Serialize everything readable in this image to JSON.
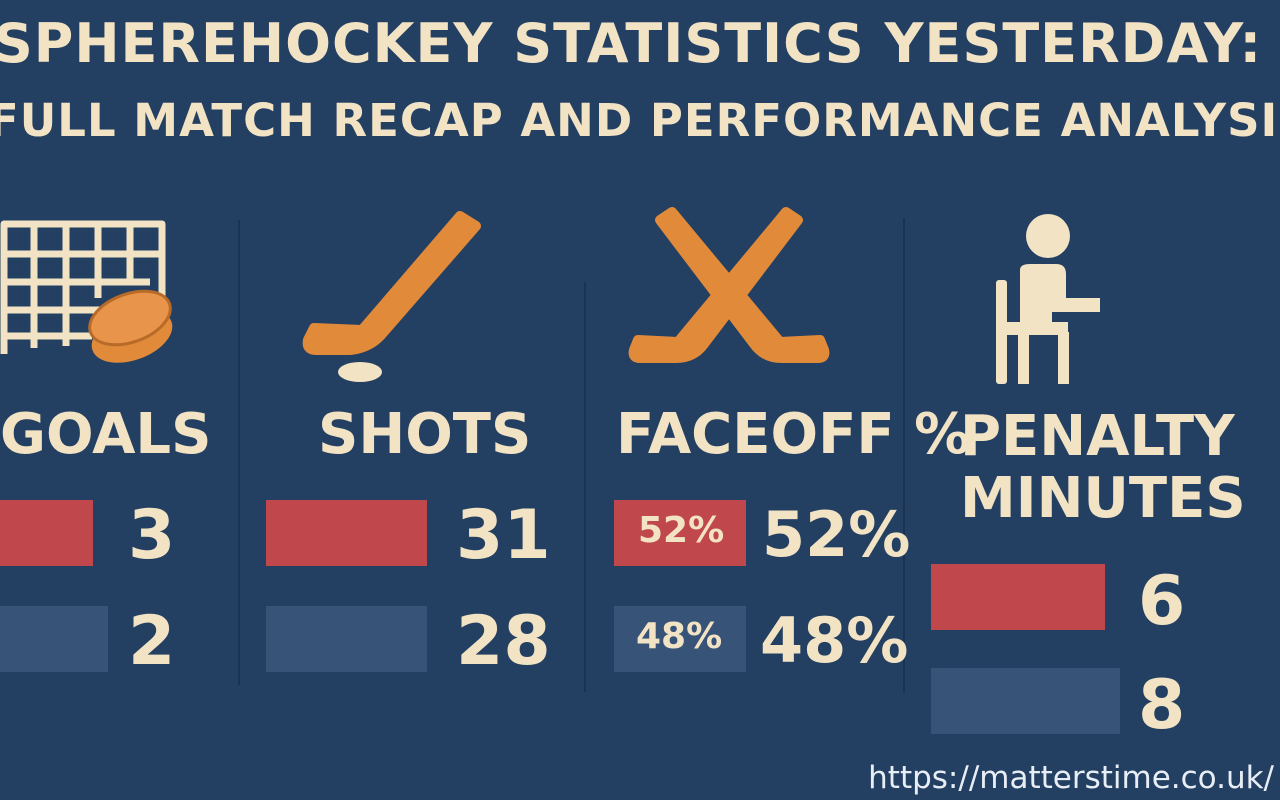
{
  "title": {
    "line1": "SPHEREHOCKEY STATISTICS YESTERDAY:",
    "line2": "FULL MATCH RECAP AND PERFORMANCE ANALYSIS"
  },
  "colors": {
    "background": "#233f62",
    "team1": "#c0484c",
    "team2": "#375478",
    "text": "#f2e3c4",
    "icon": "#e08a3a"
  },
  "stats": [
    {
      "icon": "goal-net-puck-icon",
      "label": "GOALS",
      "team1_value": "3",
      "team2_value": "2"
    },
    {
      "icon": "hockey-stick-icon",
      "label": "SHOTS",
      "team1_value": "31",
      "team2_value": "28"
    },
    {
      "icon": "crossed-sticks-icon",
      "label": "FACEOFF %",
      "team1_value": "52%",
      "team2_value": "48%",
      "team1_bar_label": "52%",
      "team2_bar_label": "48%"
    },
    {
      "icon": "penalty-box-person-icon",
      "label_line1": "PENALTY",
      "label_line2": "MINUTES",
      "team1_value": "6",
      "team2_value": "8"
    }
  ],
  "footer": {
    "url": "https://matterstime.co.uk/"
  }
}
